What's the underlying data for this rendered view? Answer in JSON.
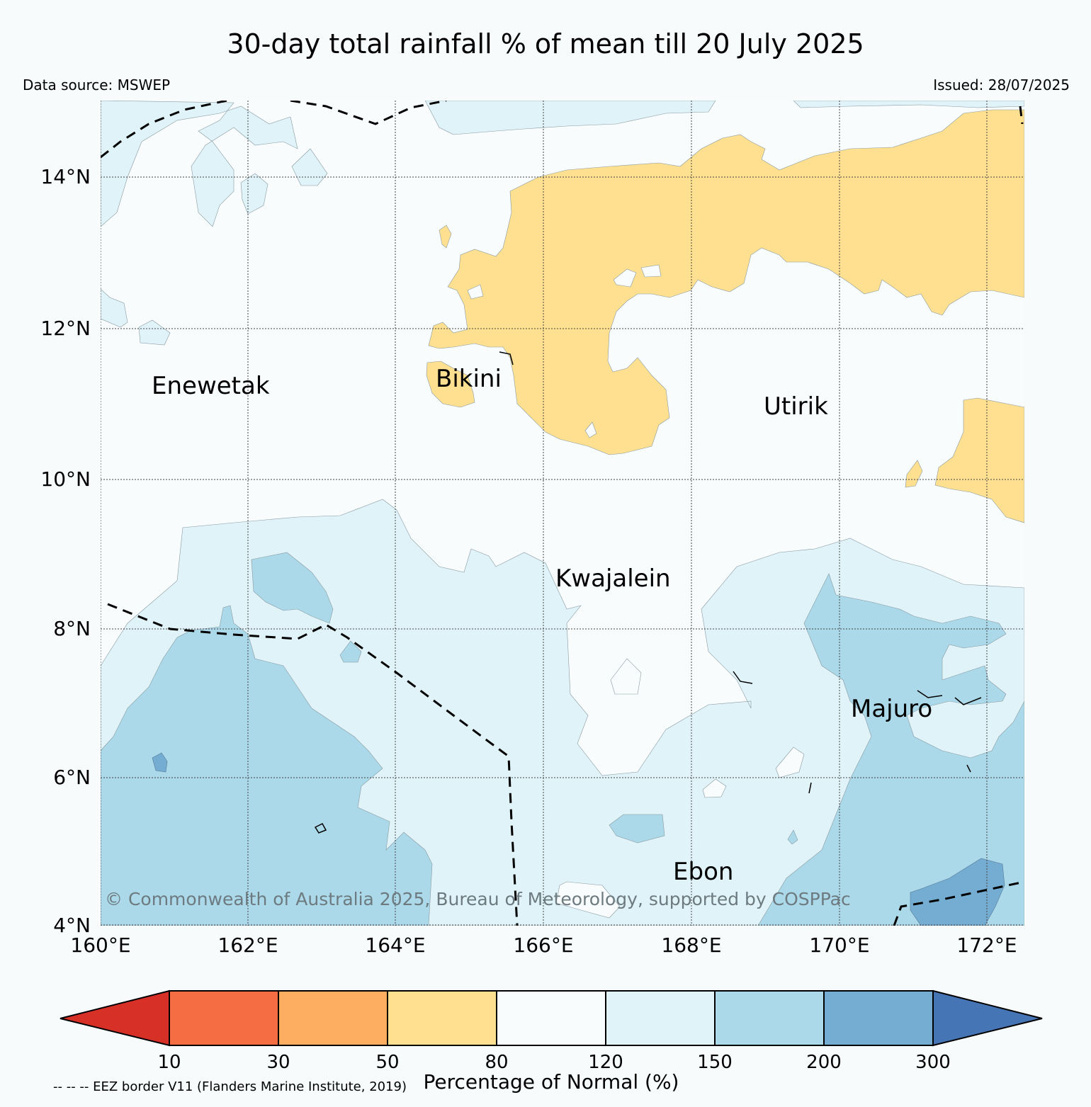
{
  "header": {
    "title": "30-day total rainfall % of mean till 20 July 2025",
    "data_source": "Data source: MSWEP",
    "issued": "Issued: 28/07/2025"
  },
  "map": {
    "lat_labels": [
      "14°N",
      "12°N",
      "10°N",
      "8°N",
      "6°N",
      "4°N"
    ],
    "lon_labels": [
      "160°E",
      "162°E",
      "164°E",
      "166°E",
      "168°E",
      "170°E",
      "172°E"
    ],
    "places": [
      {
        "name": "Enewetak"
      },
      {
        "name": "Bikini"
      },
      {
        "name": "Utirik"
      },
      {
        "name": "Kwajalein"
      },
      {
        "name": "Majuro"
      },
      {
        "name": "Ebon"
      }
    ],
    "copyright": "© Commonwealth of Australia 2025, Bureau of Meteorology, supported by COSPPac",
    "colors": {
      "dry_80": "#fee090",
      "normal": "#f8fcfd",
      "wet_150": "#e0f3f8",
      "wet_200": "#abd9e9",
      "wet_300": "#74add1"
    }
  },
  "colorbar": {
    "title": "Percentage of Normal (%)",
    "ticks": [
      "10",
      "30",
      "50",
      "80",
      "120",
      "150",
      "200",
      "300"
    ],
    "colors": [
      "#d73027",
      "#f46d43",
      "#fdae61",
      "#fee090",
      "#f8fcfd",
      "#e0f3f8",
      "#abd9e9",
      "#74add1",
      "#4575b4"
    ]
  },
  "footer": {
    "eez_note": "-- -- -- EEZ border V11 (Flanders Marine Institute, 2019)"
  }
}
